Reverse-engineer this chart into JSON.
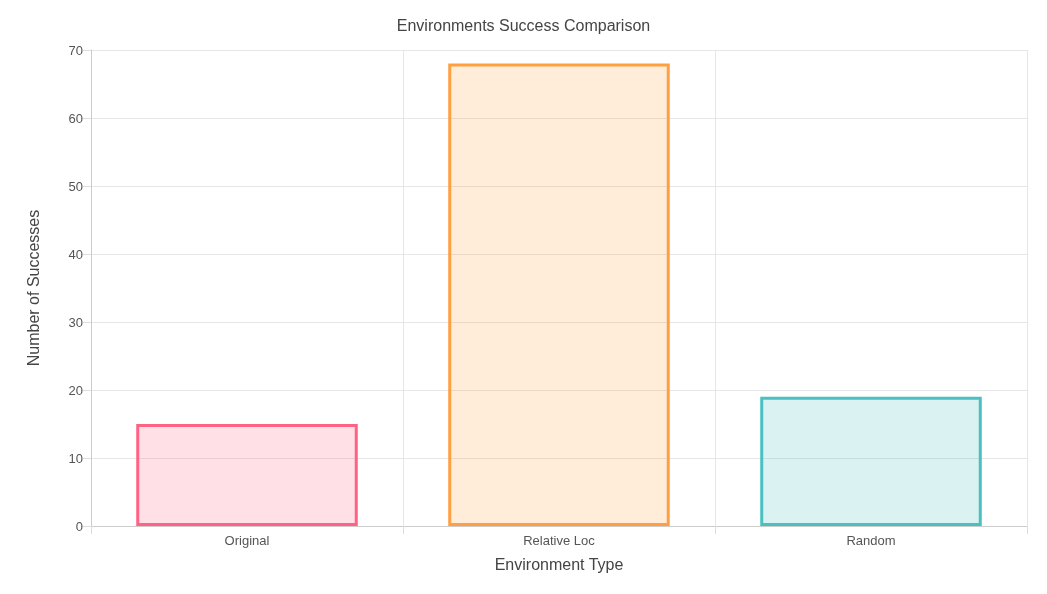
{
  "chart_data": {
    "type": "bar",
    "title": "Environments Success Comparison",
    "xlabel": "Environment Type",
    "ylabel": "Number of Successes",
    "categories": [
      "Original",
      "Relative Loc",
      "Random"
    ],
    "values": [
      15,
      68,
      19
    ],
    "colors": [
      "#ff6384",
      "#ff9f40",
      "#4bc0c0"
    ],
    "ylim": [
      0,
      70
    ],
    "yticks": [
      0,
      10,
      20,
      30,
      40,
      50,
      60,
      70
    ],
    "grid": true
  }
}
